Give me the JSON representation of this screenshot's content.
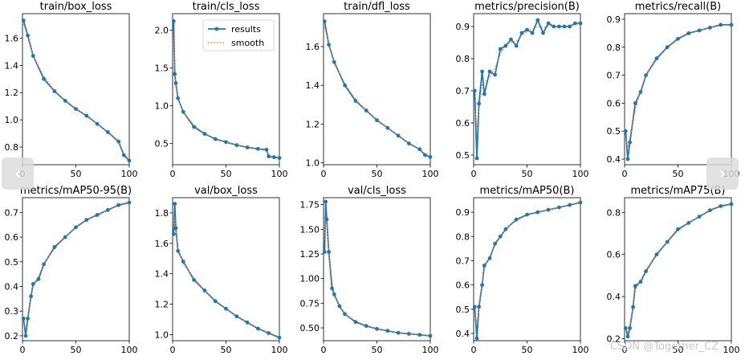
{
  "legend": {
    "results": "results",
    "smooth": "smooth"
  },
  "colors": {
    "results": "#1f77b4",
    "smooth": "#ff7f0e",
    "axis": "#000000"
  },
  "nav": {
    "prev_icon": "chevron-left-icon",
    "next_icon": "chevron-right-icon",
    "prev_glyph": "‹",
    "next_glyph": "›"
  },
  "watermark": "CSDN @Together_CZ",
  "chart_data": [
    {
      "type": "line",
      "title": "train/box_loss",
      "x_ticks": [
        0,
        50,
        100
      ],
      "xlim": [
        0,
        100
      ],
      "y_ticks": [
        0.8,
        1.0,
        1.2,
        1.4,
        1.6
      ],
      "y_tick_labels": [
        "0.8",
        "1.0",
        "1.2",
        "1.4",
        "1.6"
      ],
      "ylim": [
        0.67,
        1.78
      ],
      "x": [
        1,
        5,
        10,
        20,
        30,
        40,
        50,
        60,
        70,
        80,
        90,
        95,
        100
      ],
      "y": [
        1.73,
        1.62,
        1.47,
        1.3,
        1.21,
        1.14,
        1.08,
        1.03,
        0.97,
        0.91,
        0.84,
        0.74,
        0.7
      ]
    },
    {
      "type": "line",
      "title": "train/cls_loss",
      "x_ticks": [
        0,
        50,
        100
      ],
      "xlim": [
        0,
        100
      ],
      "y_ticks": [
        0.5,
        1.0,
        1.5,
        2.0
      ],
      "y_tick_labels": [
        "0.5",
        "1.0",
        "1.5",
        "2.0"
      ],
      "ylim": [
        0.22,
        2.22
      ],
      "legend": true,
      "x": [
        1,
        2,
        3,
        5,
        10,
        20,
        30,
        40,
        50,
        60,
        70,
        80,
        88,
        90,
        95,
        100
      ],
      "y": [
        2.12,
        1.42,
        1.3,
        1.1,
        0.92,
        0.72,
        0.63,
        0.56,
        0.52,
        0.48,
        0.45,
        0.43,
        0.42,
        0.33,
        0.32,
        0.31
      ]
    },
    {
      "type": "line",
      "title": "train/dfl_loss",
      "x_ticks": [
        0,
        50,
        100
      ],
      "xlim": [
        0,
        100
      ],
      "y_ticks": [
        1.0,
        1.2,
        1.4,
        1.6
      ],
      "y_tick_labels": [
        "1.0",
        "1.2",
        "1.4",
        "1.6"
      ],
      "ylim": [
        0.99,
        1.77
      ],
      "x": [
        1,
        5,
        10,
        20,
        30,
        40,
        50,
        60,
        70,
        80,
        90,
        95,
        100
      ],
      "y": [
        1.73,
        1.61,
        1.52,
        1.4,
        1.32,
        1.27,
        1.22,
        1.18,
        1.14,
        1.1,
        1.07,
        1.04,
        1.03
      ]
    },
    {
      "type": "line",
      "title": "metrics/precision(B)",
      "x_ticks": [
        0,
        50,
        100
      ],
      "xlim": [
        0,
        100
      ],
      "y_ticks": [
        0.5,
        0.6,
        0.7,
        0.8,
        0.9
      ],
      "y_tick_labels": [
        "0.5",
        "0.6",
        "0.7",
        "0.8",
        "0.9"
      ],
      "ylim": [
        0.47,
        0.94
      ],
      "x": [
        1,
        3,
        5,
        8,
        10,
        15,
        20,
        25,
        30,
        35,
        40,
        45,
        50,
        55,
        60,
        65,
        70,
        75,
        80,
        85,
        90,
        95,
        100
      ],
      "y": [
        0.7,
        0.49,
        0.66,
        0.76,
        0.69,
        0.76,
        0.75,
        0.83,
        0.84,
        0.86,
        0.84,
        0.88,
        0.89,
        0.88,
        0.92,
        0.88,
        0.91,
        0.9,
        0.9,
        0.9,
        0.9,
        0.91,
        0.91
      ]
    },
    {
      "type": "line",
      "title": "metrics/recall(B)",
      "x_ticks": [
        0,
        50,
        100
      ],
      "xlim": [
        0,
        100
      ],
      "y_ticks": [
        0.4,
        0.5,
        0.6,
        0.7,
        0.8,
        0.9
      ],
      "y_tick_labels": [
        "0.4",
        "0.5",
        "0.6",
        "0.7",
        "0.8",
        "0.9"
      ],
      "ylim": [
        0.38,
        0.92
      ],
      "x": [
        1,
        3,
        5,
        10,
        15,
        20,
        30,
        40,
        50,
        60,
        70,
        80,
        90,
        100
      ],
      "y": [
        0.5,
        0.4,
        0.46,
        0.6,
        0.64,
        0.7,
        0.76,
        0.8,
        0.83,
        0.85,
        0.86,
        0.87,
        0.88,
        0.88
      ]
    },
    {
      "type": "line",
      "title": "metrics/mAP50-95(B)",
      "x_ticks": [
        0,
        50,
        100
      ],
      "xlim": [
        0,
        100
      ],
      "y_ticks": [
        0.2,
        0.3,
        0.4,
        0.5,
        0.6,
        0.7
      ],
      "y_tick_labels": [
        "0.2",
        "0.3",
        "0.4",
        "0.5",
        "0.6",
        "0.7"
      ],
      "ylim": [
        0.18,
        0.76
      ],
      "x": [
        1,
        3,
        5,
        8,
        10,
        15,
        20,
        30,
        40,
        50,
        60,
        70,
        80,
        90,
        100
      ],
      "y": [
        0.27,
        0.2,
        0.27,
        0.36,
        0.41,
        0.43,
        0.49,
        0.56,
        0.6,
        0.64,
        0.67,
        0.69,
        0.71,
        0.73,
        0.74
      ]
    },
    {
      "type": "line",
      "title": "val/box_loss",
      "x_ticks": [
        0,
        50,
        100
      ],
      "xlim": [
        0,
        100
      ],
      "y_ticks": [
        1.0,
        1.2,
        1.4,
        1.6,
        1.8
      ],
      "y_tick_labels": [
        "1.0",
        "1.2",
        "1.4",
        "1.6",
        "1.8"
      ],
      "ylim": [
        0.96,
        1.9
      ],
      "x": [
        1,
        2,
        3,
        5,
        10,
        20,
        30,
        40,
        50,
        60,
        70,
        80,
        90,
        100
      ],
      "y": [
        1.66,
        1.86,
        1.7,
        1.55,
        1.48,
        1.36,
        1.29,
        1.22,
        1.17,
        1.12,
        1.08,
        1.04,
        1.01,
        0.98
      ]
    },
    {
      "type": "line",
      "title": "val/cls_loss",
      "x_ticks": [
        0,
        50,
        100
      ],
      "xlim": [
        0,
        100
      ],
      "y_ticks": [
        0.5,
        0.75,
        1.0,
        1.25,
        1.5,
        1.75
      ],
      "y_tick_labels": [
        "0.50",
        "0.75",
        "1.00",
        "1.25",
        "1.50",
        "1.75"
      ],
      "ylim": [
        0.37,
        1.82
      ],
      "x": [
        1,
        2,
        3,
        5,
        8,
        10,
        15,
        20,
        30,
        40,
        50,
        60,
        70,
        80,
        90,
        100
      ],
      "y": [
        1.27,
        1.78,
        1.6,
        1.27,
        0.9,
        0.84,
        0.72,
        0.64,
        0.56,
        0.52,
        0.49,
        0.47,
        0.45,
        0.44,
        0.43,
        0.42
      ]
    },
    {
      "type": "line",
      "title": "metrics/mAP50(B)",
      "x_ticks": [
        0,
        50,
        100
      ],
      "xlim": [
        0,
        100
      ],
      "y_ticks": [
        0.4,
        0.5,
        0.6,
        0.7,
        0.8,
        0.9
      ],
      "y_tick_labels": [
        "0.4",
        "0.5",
        "0.6",
        "0.7",
        "0.8",
        "0.9"
      ],
      "ylim": [
        0.37,
        0.96
      ],
      "x": [
        1,
        3,
        5,
        8,
        10,
        15,
        20,
        25,
        30,
        40,
        50,
        60,
        70,
        80,
        90,
        100
      ],
      "y": [
        0.51,
        0.38,
        0.51,
        0.6,
        0.68,
        0.71,
        0.77,
        0.8,
        0.83,
        0.87,
        0.89,
        0.9,
        0.91,
        0.92,
        0.93,
        0.94
      ]
    },
    {
      "type": "line",
      "title": "metrics/mAP75(B)",
      "x_ticks": [
        0,
        50,
        100
      ],
      "xlim": [
        0,
        100
      ],
      "y_ticks": [
        0.2,
        0.4,
        0.6,
        0.8
      ],
      "y_tick_labels": [
        "0.2",
        "0.4",
        "0.6",
        "0.8"
      ],
      "ylim": [
        0.19,
        0.87
      ],
      "x": [
        1,
        3,
        5,
        8,
        10,
        15,
        20,
        30,
        40,
        50,
        60,
        70,
        80,
        90,
        100
      ],
      "y": [
        0.25,
        0.21,
        0.25,
        0.35,
        0.45,
        0.47,
        0.52,
        0.6,
        0.66,
        0.72,
        0.75,
        0.78,
        0.81,
        0.83,
        0.84
      ]
    }
  ]
}
